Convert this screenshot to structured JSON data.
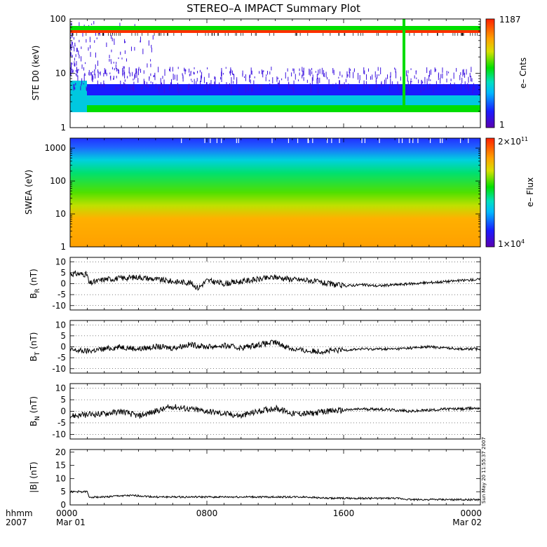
{
  "chart_data": {
    "type": "line",
    "title": "STEREO–A IMPACT Summary Plot",
    "x_axis": {
      "row1": "hhmm",
      "row2": "2007",
      "ticks": [
        {
          "hour": 0,
          "label": "0000",
          "date": "Mar 01"
        },
        {
          "hour": 8,
          "label": "0800",
          "date": ""
        },
        {
          "hour": 16,
          "label": "1600",
          "date": ""
        },
        {
          "hour": 24,
          "label": "0000",
          "date": "Mar 02"
        }
      ],
      "range_hours": [
        0,
        24
      ]
    },
    "panels": [
      {
        "id": "ste",
        "kind": "spectrogram",
        "ylabel": "STE D0 (keV)",
        "yscale": "log",
        "ylim": [
          1,
          100
        ],
        "yticks": [
          "1",
          "10",
          "100"
        ],
        "colorbar": {
          "label": "e– Cnts",
          "max": "1187",
          "min": "1"
        }
      },
      {
        "id": "swea",
        "kind": "spectrogram",
        "ylabel": "SWEA (eV)",
        "yscale": "log",
        "ylim": [
          1,
          2000
        ],
        "yticks": [
          "1",
          "10",
          "100",
          "1000"
        ],
        "colorbar": {
          "label": "e– Flux",
          "max_base": "2×10",
          "max_exp": "11",
          "min_base": "1×10",
          "min_exp": "4"
        }
      },
      {
        "id": "br",
        "kind": "line",
        "ylabel_main": "B",
        "ylabel_sub": "R",
        "ylabel_unit": " (nT)",
        "ylim": [
          -12,
          12
        ],
        "yticks": [
          -10,
          -5,
          0,
          5,
          10
        ],
        "series": {
          "name": "",
          "x": [
            0,
            0.5,
            1,
            1.1,
            1.5,
            2,
            3,
            4,
            5,
            6,
            7,
            7.5,
            8,
            9,
            10,
            11,
            12,
            13,
            14,
            15,
            16,
            17,
            18,
            19,
            20,
            21,
            22,
            23,
            24
          ],
          "y": [
            4.5,
            4.5,
            4.2,
            0,
            1,
            2,
            2.5,
            3,
            2,
            1,
            0.5,
            -2,
            1.5,
            0,
            1,
            2,
            3,
            2,
            1.5,
            0,
            -1,
            -0.5,
            -1,
            -0.5,
            0,
            0.5,
            1,
            1.5,
            2
          ]
        }
      },
      {
        "id": "bt",
        "kind": "line",
        "ylabel_main": "B",
        "ylabel_sub": "T",
        "ylabel_unit": " (nT)",
        "ylim": [
          -12,
          12
        ],
        "yticks": [
          -10,
          -5,
          0,
          5,
          10
        ],
        "series": {
          "name": "",
          "x": [
            0,
            1,
            2,
            3,
            4,
            5,
            6,
            7,
            8,
            9,
            10,
            11,
            12,
            13,
            14,
            15,
            16,
            17,
            18,
            19,
            20,
            21,
            22,
            23,
            24
          ],
          "y": [
            -1.5,
            -2,
            -1,
            0,
            -1,
            0,
            -0.5,
            1,
            0,
            0.5,
            -0.5,
            1,
            2,
            -1,
            -2,
            -2,
            -1.5,
            -1,
            -1,
            -1,
            -0.5,
            0,
            -0.5,
            -1,
            -1
          ]
        }
      },
      {
        "id": "bn",
        "kind": "line",
        "ylabel_main": "B",
        "ylabel_sub": "N",
        "ylabel_unit": " (nT)",
        "ylim": [
          -12,
          12
        ],
        "yticks": [
          -10,
          -5,
          0,
          5,
          10
        ],
        "series": {
          "name": "",
          "x": [
            0,
            1,
            2,
            3,
            4,
            5,
            6,
            7,
            8,
            9,
            10,
            11,
            12,
            13,
            14,
            15,
            16,
            17,
            18,
            19,
            20,
            21,
            22,
            23,
            24
          ],
          "y": [
            -2,
            -1.5,
            -1,
            0,
            -2,
            0,
            2,
            1,
            0,
            -1,
            -2,
            0,
            1.5,
            -1,
            -1,
            0,
            0.5,
            1,
            1,
            0.5,
            0,
            0.5,
            1,
            1,
            1.5
          ]
        }
      },
      {
        "id": "bmag",
        "kind": "line",
        "ylabel_main": "|B| (nT)",
        "ylim": [
          0,
          21
        ],
        "yticks": [
          0,
          5,
          10,
          15,
          20
        ],
        "side_label": "Sun May 20 11:55:37 2007",
        "series": {
          "name": "",
          "x": [
            0,
            1,
            1.1,
            2,
            3,
            4,
            5,
            6,
            7,
            8,
            9,
            10,
            11,
            12,
            13,
            14,
            15,
            16,
            17,
            18,
            19,
            20,
            21,
            22,
            23,
            24
          ],
          "y": [
            5,
            5,
            3,
            3,
            3.5,
            3.5,
            3,
            3,
            3,
            3,
            3,
            3,
            3,
            3,
            3,
            3,
            2.5,
            2.5,
            2.5,
            2.5,
            2.5,
            2,
            2,
            2,
            2,
            2
          ]
        }
      }
    ]
  }
}
